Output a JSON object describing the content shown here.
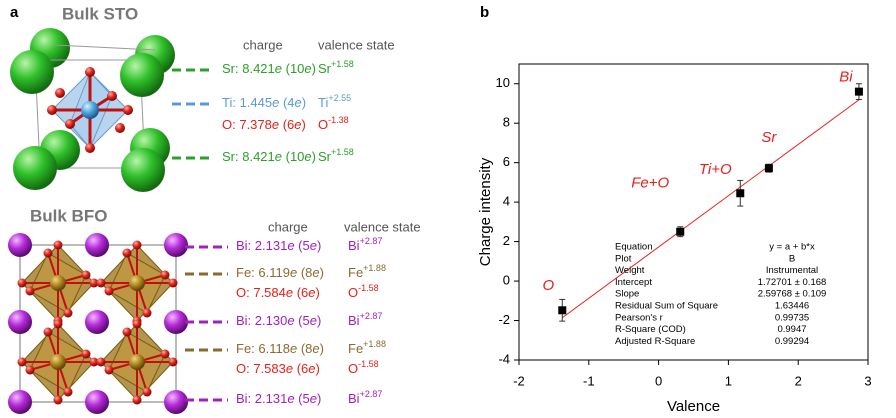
{
  "panel_labels": [
    "a",
    "b"
  ],
  "panel_a": {
    "sto": {
      "title": "Bulk STO",
      "headers": [
        "charge",
        "valence state"
      ],
      "rows": [
        {
          "charge": [
            "Sr: 8.421",
            "e",
            " (10",
            "e",
            ")"
          ],
          "valence": [
            "Sr",
            "+1.58"
          ]
        },
        {
          "charge": [
            "Ti: 1.445",
            "e",
            " (4",
            "e",
            ")"
          ],
          "valence": [
            "Ti",
            "+2.55"
          ]
        },
        {
          "charge": [
            "O: 7.378",
            "e",
            " (6",
            "e",
            ")"
          ],
          "valence": [
            "O",
            "-1.38"
          ]
        },
        {
          "charge": [
            "Sr: 8.421",
            "e",
            " (10",
            "e",
            ")"
          ],
          "valence": [
            "Sr",
            "+1.58"
          ]
        }
      ]
    },
    "bfo": {
      "title": "Bulk BFO",
      "headers": [
        "charge",
        "valence state"
      ],
      "rows": [
        {
          "charge": [
            "Bi: 2.131",
            "e",
            " (5",
            "e",
            ")"
          ],
          "valence": [
            "Bi",
            "+2.87"
          ]
        },
        {
          "charge": [
            "Fe: 6.119",
            "e",
            " (8",
            "e",
            ")"
          ],
          "valence": [
            "Fe",
            "+1.88"
          ]
        },
        {
          "charge": [
            "O:  7.584",
            "e",
            " (6",
            "e",
            ")"
          ],
          "valence": [
            "O",
            "-1.58"
          ]
        },
        {
          "charge": [
            "Bi: 2.130",
            "e",
            " (5",
            "e",
            ")"
          ],
          "valence": [
            "Bi",
            "+2.87"
          ]
        },
        {
          "charge": [
            "Fe: 6.118",
            "e",
            " (8",
            "e",
            ")"
          ],
          "valence": [
            "Fe",
            "+1.88"
          ]
        },
        {
          "charge": [
            "O:  7.583",
            "e",
            " (6",
            "e",
            ")"
          ],
          "valence": [
            "O",
            "-1.58"
          ]
        },
        {
          "charge": [
            "Bi: 2.131",
            "e",
            " (5",
            "e",
            ")"
          ],
          "valence": [
            "Bi",
            "+2.87"
          ]
        }
      ]
    }
  },
  "chart_data": {
    "type": "scatter",
    "xlabel": "Valence",
    "ylabel": "Charge intensity",
    "x": [
      -1.38,
      0.31,
      1.17,
      1.58,
      2.87
    ],
    "values": [
      -1.48,
      2.5,
      4.45,
      5.72,
      9.6
    ],
    "errors": [
      0.55,
      0.25,
      0.65,
      0.2,
      0.4
    ],
    "point_labels": [
      "O",
      "Fe+O",
      "Ti+O",
      "Sr",
      "Bi"
    ],
    "color": "#000000",
    "label_color": "#e8201a",
    "fit": {
      "intercept": 1.72701,
      "slope": 2.59768,
      "color": "#e8201a"
    },
    "xlim": [
      -2,
      3
    ],
    "xticks": [
      -2,
      -1,
      0,
      1,
      2,
      3
    ],
    "ylim": [
      -4,
      11
    ],
    "yticks": [
      -4,
      -2,
      0,
      2,
      4,
      6,
      8,
      10
    ],
    "fit_table": [
      [
        "Equation",
        "y = a + b*x"
      ],
      [
        "Plot",
        "B"
      ],
      [
        "Weight",
        "Instrumental"
      ],
      [
        "Intercept",
        "1.72701 ± 0.168"
      ],
      [
        "Slope",
        "2.59768 ± 0.109"
      ],
      [
        "Residual Sum of Square",
        "1.63446"
      ],
      [
        "Pearson's r",
        "0.99735"
      ],
      [
        "R-Square (COD)",
        "0.9947"
      ],
      [
        "Adjusted R-Square",
        "0.99294"
      ]
    ]
  }
}
